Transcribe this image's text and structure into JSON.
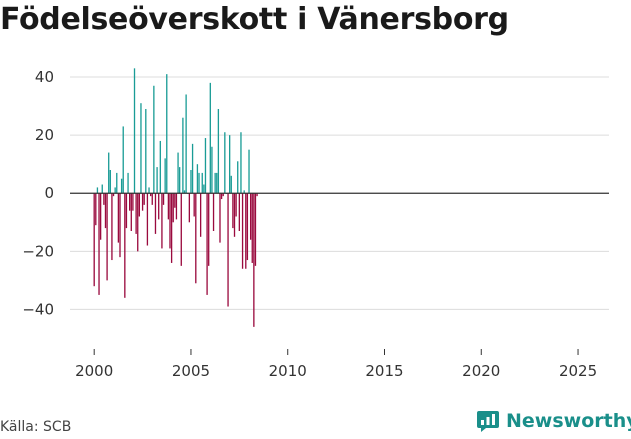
{
  "chart_data": {
    "type": "bar",
    "title": "Födelseöverskott i Vänersborg",
    "xlabel": "",
    "ylabel": "",
    "ylim": [
      -55,
      50
    ],
    "xlim": [
      1998.75,
      2026.6
    ],
    "yticks": [
      40,
      20,
      0,
      -20,
      -40
    ],
    "ytick_labels": [
      "40",
      "20",
      "0",
      "−20",
      "−40"
    ],
    "xticks": [
      2000,
      2005,
      2010,
      2015,
      2020,
      2025
    ],
    "xtick_labels": [
      "2000",
      "2005",
      "2010",
      "2015",
      "2020",
      "2025"
    ],
    "grid": true,
    "positive_color": "#1a9c96",
    "negative_color": "#9a0a3e",
    "bar_period": "month",
    "start": {
      "year": 2000,
      "month": 1
    },
    "values": [
      -32,
      -11,
      2,
      -35,
      -16,
      3,
      -4,
      -12,
      -30,
      14,
      8,
      -23,
      -1,
      2,
      7,
      -17,
      -22,
      5,
      23,
      -36,
      -12,
      7,
      -6,
      -13,
      -6,
      43,
      -14,
      -20,
      -8,
      31,
      -6,
      -4,
      29,
      -18,
      2,
      -1,
      -4,
      37,
      -14,
      9,
      -9,
      18,
      -19,
      -4,
      12,
      41,
      -9,
      -19,
      -24,
      -10,
      -5,
      -9,
      14,
      9,
      -25,
      26,
      1,
      34,
      0,
      -10,
      8,
      17,
      -8,
      -31,
      10,
      7,
      -15,
      7,
      3,
      19,
      -35,
      -25,
      38,
      16,
      -13,
      7,
      7,
      29,
      -17,
      -2,
      -1,
      21,
      0,
      -39,
      20,
      6,
      -12,
      -15,
      -8,
      11,
      -13,
      21,
      -26,
      1,
      -26,
      -23,
      15,
      -16,
      -24,
      -46,
      -25,
      -1
    ]
  },
  "footer": {
    "source": "Källa: SCB",
    "brand": "Newsworthy"
  },
  "colors": {
    "brand": "#1a8f8a",
    "grid": "#dcdcdc",
    "zero_line": "#333333"
  }
}
